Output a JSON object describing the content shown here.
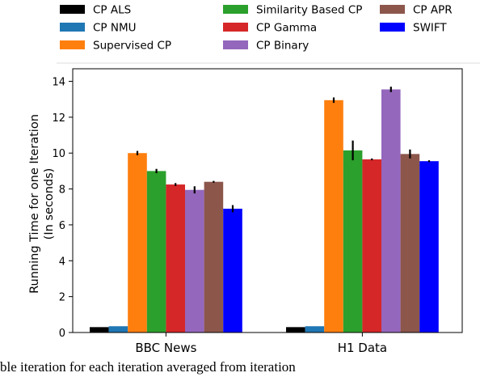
{
  "chart_data": {
    "type": "bar",
    "categories": [
      "BBC News",
      "H1 Data"
    ],
    "ylabel": "Running Time for one Iteration (In seconds)",
    "ylabel_lines": [
      "Running Time for one Iteration",
      "(In seconds)"
    ],
    "xlabel": "",
    "ylim": [
      0,
      14.7
    ],
    "yticks": [
      0,
      2,
      4,
      6,
      8,
      10,
      12,
      14
    ],
    "legend_position": "top (outside plot)",
    "grid": false,
    "series": [
      {
        "name": "CP ALS",
        "color": "#000000",
        "values": [
          0.3,
          0.3
        ],
        "errors": [
          0.0,
          0.0
        ]
      },
      {
        "name": "CP NMU",
        "color": "#1f77b4",
        "values": [
          0.35,
          0.35
        ],
        "errors": [
          0.0,
          0.0
        ]
      },
      {
        "name": "Supervised CP",
        "color": "#ff7f0e",
        "values": [
          10.0,
          12.95
        ],
        "errors": [
          0.12,
          0.15
        ]
      },
      {
        "name": "Similarity Based CP",
        "color": "#2ca02c",
        "values": [
          9.0,
          10.15
        ],
        "errors": [
          0.12,
          0.55
        ]
      },
      {
        "name": "CP Gamma",
        "color": "#d62728",
        "values": [
          8.25,
          9.65
        ],
        "errors": [
          0.08,
          0.05
        ]
      },
      {
        "name": "CP Binary",
        "color": "#9467bd",
        "values": [
          7.95,
          13.55
        ],
        "errors": [
          0.2,
          0.15
        ]
      },
      {
        "name": "CP APR",
        "color": "#8c564b",
        "values": [
          8.4,
          9.95
        ],
        "errors": [
          0.05,
          0.25
        ]
      },
      {
        "name": "SWIFT",
        "color": "#0000ff",
        "values": [
          6.9,
          9.55
        ],
        "errors": [
          0.2,
          0.05
        ]
      }
    ]
  },
  "caption_text": "ble iteration for each iteration averaged from iteration"
}
